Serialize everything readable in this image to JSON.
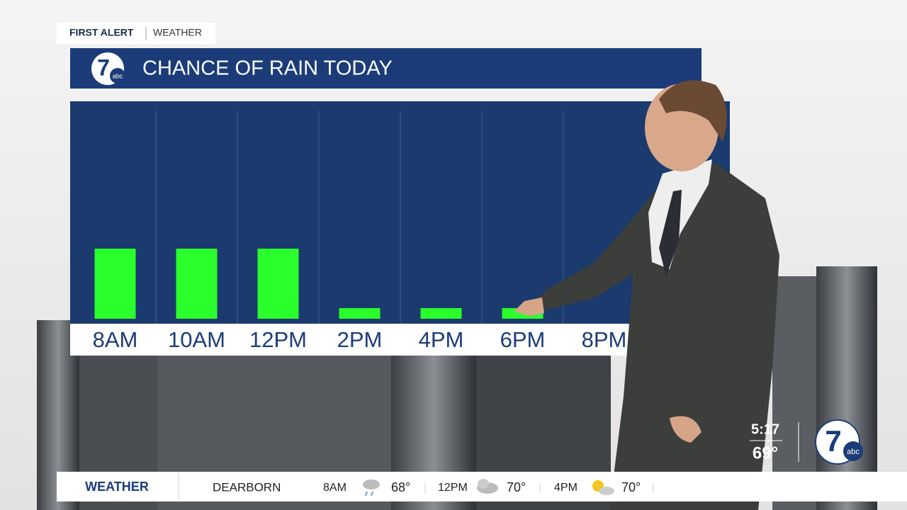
{
  "brand": {
    "first": "FIRST ALERT",
    "second": "WEATHER"
  },
  "logo": {
    "number": "7",
    "network": "abc"
  },
  "chart_data": {
    "type": "bar",
    "title": "CHANCE OF RAIN TODAY",
    "categories": [
      "8AM",
      "10AM",
      "12PM",
      "2PM",
      "4PM",
      "6PM",
      "8PM"
    ],
    "values": [
      33,
      33,
      33,
      5,
      5,
      5,
      0
    ],
    "color": "#2bff2b",
    "ylim": [
      0,
      100
    ]
  },
  "clock": {
    "time": "5:17",
    "temperature": "69°"
  },
  "ticker": {
    "section": "WEATHER",
    "location": "DEARBORN",
    "forecast": [
      {
        "time": "8AM",
        "temp": "68°"
      },
      {
        "time": "12PM",
        "temp": "70°"
      },
      {
        "time": "4PM",
        "temp": "70°"
      }
    ]
  }
}
